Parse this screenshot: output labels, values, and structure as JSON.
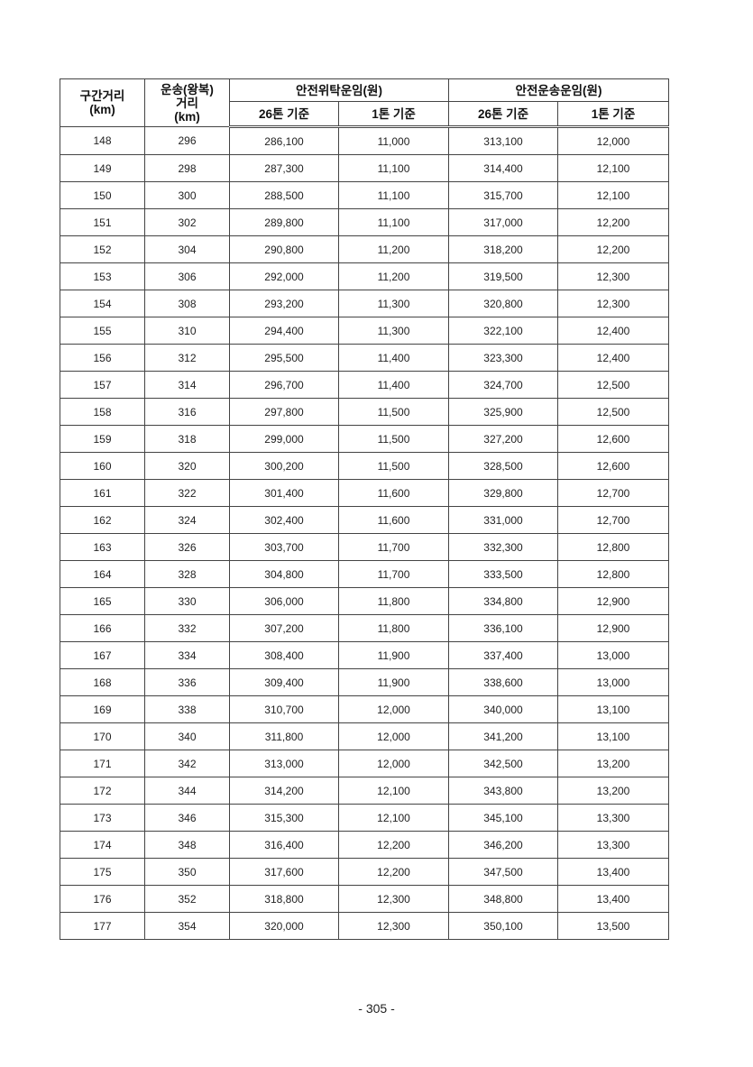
{
  "table": {
    "headers": {
      "section_distance": "구간거리",
      "section_distance_unit": "(km)",
      "transport_distance_line1": "운송(왕복)",
      "transport_distance_line2": "거리",
      "transport_distance_unit": "(km)",
      "group_consign": "안전위탁운임(원)",
      "group_transport": "안전운송운임(원)",
      "sub_26t": "26톤 기준",
      "sub_1t": "1톤 기준"
    },
    "rows": [
      [
        "148",
        "296",
        "286,100",
        "11,000",
        "313,100",
        "12,000"
      ],
      [
        "149",
        "298",
        "287,300",
        "11,100",
        "314,400",
        "12,100"
      ],
      [
        "150",
        "300",
        "288,500",
        "11,100",
        "315,700",
        "12,100"
      ],
      [
        "151",
        "302",
        "289,800",
        "11,100",
        "317,000",
        "12,200"
      ],
      [
        "152",
        "304",
        "290,800",
        "11,200",
        "318,200",
        "12,200"
      ],
      [
        "153",
        "306",
        "292,000",
        "11,200",
        "319,500",
        "12,300"
      ],
      [
        "154",
        "308",
        "293,200",
        "11,300",
        "320,800",
        "12,300"
      ],
      [
        "155",
        "310",
        "294,400",
        "11,300",
        "322,100",
        "12,400"
      ],
      [
        "156",
        "312",
        "295,500",
        "11,400",
        "323,300",
        "12,400"
      ],
      [
        "157",
        "314",
        "296,700",
        "11,400",
        "324,700",
        "12,500"
      ],
      [
        "158",
        "316",
        "297,800",
        "11,500",
        "325,900",
        "12,500"
      ],
      [
        "159",
        "318",
        "299,000",
        "11,500",
        "327,200",
        "12,600"
      ],
      [
        "160",
        "320",
        "300,200",
        "11,500",
        "328,500",
        "12,600"
      ],
      [
        "161",
        "322",
        "301,400",
        "11,600",
        "329,800",
        "12,700"
      ],
      [
        "162",
        "324",
        "302,400",
        "11,600",
        "331,000",
        "12,700"
      ],
      [
        "163",
        "326",
        "303,700",
        "11,700",
        "332,300",
        "12,800"
      ],
      [
        "164",
        "328",
        "304,800",
        "11,700",
        "333,500",
        "12,800"
      ],
      [
        "165",
        "330",
        "306,000",
        "11,800",
        "334,800",
        "12,900"
      ],
      [
        "166",
        "332",
        "307,200",
        "11,800",
        "336,100",
        "12,900"
      ],
      [
        "167",
        "334",
        "308,400",
        "11,900",
        "337,400",
        "13,000"
      ],
      [
        "168",
        "336",
        "309,400",
        "11,900",
        "338,600",
        "13,000"
      ],
      [
        "169",
        "338",
        "310,700",
        "12,000",
        "340,000",
        "13,100"
      ],
      [
        "170",
        "340",
        "311,800",
        "12,000",
        "341,200",
        "13,100"
      ],
      [
        "171",
        "342",
        "313,000",
        "12,000",
        "342,500",
        "13,200"
      ],
      [
        "172",
        "344",
        "314,200",
        "12,100",
        "343,800",
        "13,200"
      ],
      [
        "173",
        "346",
        "315,300",
        "12,100",
        "345,100",
        "13,300"
      ],
      [
        "174",
        "348",
        "316,400",
        "12,200",
        "346,200",
        "13,300"
      ],
      [
        "175",
        "350",
        "317,600",
        "12,200",
        "347,500",
        "13,400"
      ],
      [
        "176",
        "352",
        "318,800",
        "12,300",
        "348,800",
        "13,400"
      ],
      [
        "177",
        "354",
        "320,000",
        "12,300",
        "350,100",
        "13,500"
      ]
    ]
  },
  "page_number": "- 305 -"
}
